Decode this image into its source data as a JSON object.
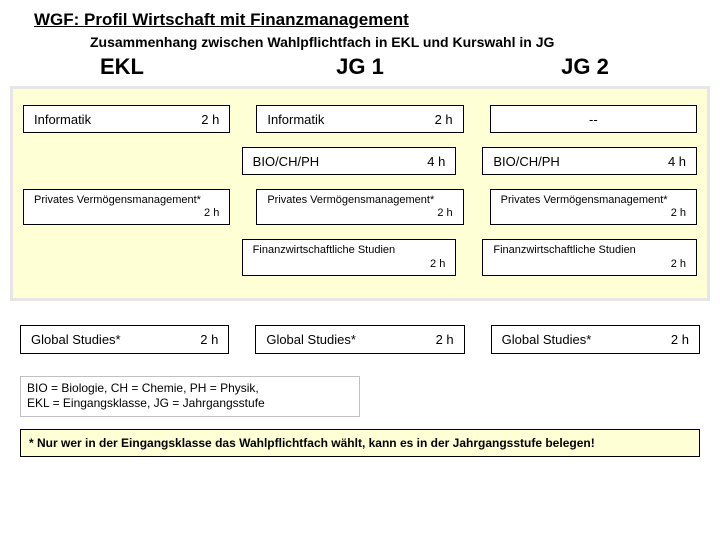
{
  "colors": {
    "panel_bg": "#feffd5",
    "panel_border": "#e6e6e6",
    "cell_bg": "#ffffff",
    "cell_border": "#000000",
    "page_bg": "#ffffff"
  },
  "title": "WGF: Profil Wirtschaft mit Finanzmanagement",
  "subtitle": "Zusammenhang zwischen Wahlpflichtfach in EKL und Kurswahl in JG",
  "headers": {
    "col1": "EKL",
    "col2": "JG 1",
    "col3": "JG 2"
  },
  "rows": [
    {
      "ekl": {
        "label": "Informatik",
        "hours": "2 h"
      },
      "jg1": {
        "label": "Informatik",
        "hours": "2 h"
      },
      "jg2": {
        "label": "--",
        "hours": "",
        "center": true
      }
    },
    {
      "ekl": null,
      "jg1": {
        "label": "BIO/CH/PH",
        "hours": "4 h"
      },
      "jg2": {
        "label": "BIO/CH/PH",
        "hours": "4 h"
      }
    },
    {
      "small": true,
      "ekl": {
        "line1": "Privates Vermögensmanagement*",
        "line2": "2 h"
      },
      "jg1": {
        "line1": "Privates Vermögensmanagement*",
        "line2": "2 h"
      },
      "jg2": {
        "line1": "Privates Vermögensmanagement*",
        "line2": "2 h"
      }
    },
    {
      "small": true,
      "ekl": null,
      "jg1": {
        "line1": "Finanzwirtschaftliche Studien",
        "line2": "2 h"
      },
      "jg2": {
        "line1": "Finanzwirtschaftliche Studien",
        "line2": "2 h"
      }
    }
  ],
  "outside": {
    "ekl": {
      "label": "Global Studies*",
      "hours": "2 h"
    },
    "jg1": {
      "label": "Global Studies*",
      "hours": "2 h"
    },
    "jg2": {
      "label": "Global Studies*",
      "hours": "2 h"
    }
  },
  "legend_line1": "BIO = Biologie, CH = Chemie, PH = Physik,",
  "legend_line2": "EKL = Eingangsklasse, JG = Jahrgangsstufe",
  "footnote": "* Nur wer in der Eingangsklasse das Wahlpflichtfach wählt, kann es in der Jahrgangsstufe belegen!"
}
